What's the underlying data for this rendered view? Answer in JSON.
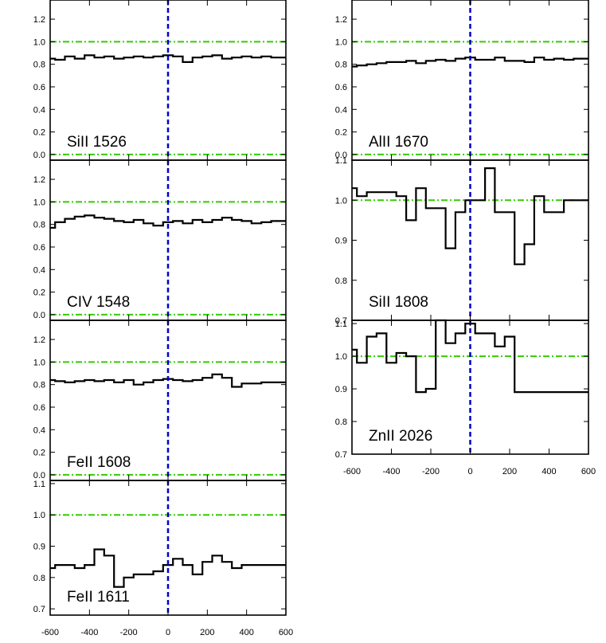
{
  "chart_data": [
    {
      "type": "line",
      "step": true,
      "label": "SiII 1526",
      "ylim": [
        -0.05,
        1.37
      ],
      "yticks": [
        "0.0",
        "0.2",
        "0.4",
        "0.6",
        "0.8",
        "1.0",
        "1.2"
      ],
      "xlim": [
        -600,
        600
      ],
      "continuum": 1.0,
      "zero_level": 0.0,
      "series": [
        {
          "x": [
            -600,
            -550,
            -500,
            -450,
            -400,
            -350,
            -300,
            -250,
            -200,
            -150,
            -100,
            -50,
            0,
            50,
            100,
            150,
            200,
            250,
            300,
            350,
            400,
            450,
            500,
            550,
            600
          ],
          "values": [
            0.85,
            0.84,
            0.87,
            0.85,
            0.88,
            0.86,
            0.87,
            0.85,
            0.86,
            0.87,
            0.86,
            0.87,
            0.88,
            0.87,
            0.82,
            0.86,
            0.87,
            0.88,
            0.85,
            0.86,
            0.87,
            0.86,
            0.87,
            0.86,
            0.86
          ]
        }
      ]
    },
    {
      "type": "line",
      "step": true,
      "label": "CIV 1548",
      "ylim": [
        -0.05,
        1.37
      ],
      "yticks": [
        "0.0",
        "0.2",
        "0.4",
        "0.6",
        "0.8",
        "1.0",
        "1.2"
      ],
      "xlim": [
        -600,
        600
      ],
      "continuum": 1.0,
      "zero_level": 0.0,
      "series": [
        {
          "x": [
            -600,
            -550,
            -500,
            -450,
            -400,
            -350,
            -300,
            -250,
            -200,
            -150,
            -100,
            -50,
            0,
            50,
            100,
            150,
            200,
            250,
            300,
            350,
            400,
            450,
            500,
            550,
            600
          ],
          "values": [
            0.77,
            0.82,
            0.85,
            0.87,
            0.88,
            0.86,
            0.85,
            0.83,
            0.82,
            0.84,
            0.81,
            0.79,
            0.82,
            0.83,
            0.81,
            0.84,
            0.82,
            0.84,
            0.86,
            0.84,
            0.83,
            0.81,
            0.82,
            0.83,
            0.83
          ]
        }
      ]
    },
    {
      "type": "line",
      "step": true,
      "label": "FeII 1608",
      "ylim": [
        -0.05,
        1.37
      ],
      "yticks": [
        "0.0",
        "0.2",
        "0.4",
        "0.6",
        "0.8",
        "1.0",
        "1.2"
      ],
      "xlim": [
        -600,
        600
      ],
      "continuum": 1.0,
      "zero_level": 0.0,
      "series": [
        {
          "x": [
            -600,
            -550,
            -500,
            -450,
            -400,
            -350,
            -300,
            -250,
            -200,
            -150,
            -100,
            -50,
            0,
            50,
            100,
            150,
            200,
            250,
            300,
            350,
            400,
            450,
            500,
            550,
            600
          ],
          "values": [
            0.84,
            0.83,
            0.82,
            0.83,
            0.84,
            0.83,
            0.84,
            0.82,
            0.84,
            0.8,
            0.82,
            0.84,
            0.85,
            0.84,
            0.83,
            0.84,
            0.86,
            0.89,
            0.86,
            0.78,
            0.81,
            0.81,
            0.82,
            0.82,
            0.82
          ]
        }
      ]
    },
    {
      "type": "line",
      "step": true,
      "label": "FeII 1611",
      "ylim": [
        0.68,
        1.11
      ],
      "yticks": [
        "0.7",
        "0.8",
        "0.9",
        "1.0",
        "1.1"
      ],
      "xlim": [
        -600,
        600
      ],
      "xticks": [
        "-600",
        "-400",
        "-200",
        "0",
        "200",
        "400",
        "600"
      ],
      "continuum": 1.0,
      "series": [
        {
          "x": [
            -600,
            -550,
            -500,
            -450,
            -400,
            -350,
            -300,
            -250,
            -200,
            -150,
            -100,
            -50,
            0,
            50,
            100,
            150,
            200,
            250,
            300,
            350,
            400,
            450,
            500,
            550,
            600
          ],
          "values": [
            0.83,
            0.84,
            0.84,
            0.83,
            0.84,
            0.89,
            0.87,
            0.77,
            0.8,
            0.81,
            0.81,
            0.82,
            0.84,
            0.86,
            0.84,
            0.81,
            0.85,
            0.87,
            0.85,
            0.83,
            0.84,
            0.84,
            0.84,
            0.84,
            0.84
          ]
        }
      ]
    },
    {
      "type": "line",
      "step": true,
      "label": "AlII 1670",
      "ylim": [
        -0.05,
        1.37
      ],
      "yticks": [
        "0.0",
        "0.2",
        "0.4",
        "0.6",
        "0.8",
        "1.0",
        "1.2"
      ],
      "xlim": [
        -600,
        600
      ],
      "continuum": 1.0,
      "zero_level": 0.0,
      "series": [
        {
          "x": [
            -600,
            -550,
            -500,
            -450,
            -400,
            -350,
            -300,
            -250,
            -200,
            -150,
            -100,
            -50,
            0,
            50,
            100,
            150,
            200,
            250,
            300,
            350,
            400,
            450,
            500,
            550,
            600
          ],
          "values": [
            0.78,
            0.79,
            0.8,
            0.81,
            0.82,
            0.82,
            0.83,
            0.81,
            0.83,
            0.84,
            0.83,
            0.85,
            0.86,
            0.84,
            0.84,
            0.86,
            0.83,
            0.83,
            0.82,
            0.86,
            0.84,
            0.85,
            0.84,
            0.85,
            0.85
          ]
        }
      ]
    },
    {
      "type": "line",
      "step": true,
      "label": "SiII 1808",
      "ylim": [
        0.7,
        1.1
      ],
      "yticks": [
        "0.7",
        "0.8",
        "0.9",
        "1.0",
        "1.1"
      ],
      "xlim": [
        -600,
        600
      ],
      "continuum": 1.0,
      "series": [
        {
          "x": [
            -600,
            -550,
            -500,
            -450,
            -400,
            -350,
            -300,
            -250,
            -200,
            -150,
            -100,
            -50,
            0,
            50,
            100,
            150,
            200,
            250,
            300,
            350,
            400,
            450,
            500,
            550,
            600
          ],
          "values": [
            1.03,
            1.01,
            1.02,
            1.02,
            1.02,
            1.01,
            0.95,
            1.03,
            0.98,
            0.98,
            0.88,
            0.97,
            1.0,
            1.0,
            1.08,
            0.97,
            0.97,
            0.84,
            0.89,
            1.01,
            0.97,
            0.97,
            1.0,
            1.0,
            1.0
          ]
        }
      ]
    },
    {
      "type": "line",
      "step": true,
      "label": "ZnII 2026",
      "ylim": [
        0.7,
        1.11
      ],
      "yticks": [
        "0.7",
        "0.8",
        "0.9",
        "1.0",
        "1.1"
      ],
      "xlim": [
        -600,
        600
      ],
      "xticks": [
        "-600",
        "-400",
        "-200",
        "0",
        "200",
        "400",
        "600"
      ],
      "continuum": 1.0,
      "series": [
        {
          "x": [
            -600,
            -550,
            -500,
            -450,
            -400,
            -350,
            -300,
            -250,
            -200,
            -150,
            -100,
            -50,
            0,
            50,
            100,
            150,
            200,
            250,
            300,
            350,
            400,
            450,
            500,
            550,
            600
          ],
          "values": [
            1.02,
            0.98,
            1.06,
            1.07,
            0.98,
            1.01,
            1.0,
            0.89,
            0.9,
            1.11,
            1.04,
            1.07,
            1.1,
            1.07,
            1.07,
            1.03,
            1.06,
            0.89,
            0.89,
            0.89,
            0.89,
            0.89,
            0.89,
            0.89,
            0.89
          ]
        }
      ]
    }
  ],
  "colors": {
    "data": "#000000",
    "continuum": "#33cc00",
    "velocity_zero": "#0000cc",
    "frame": "#000000"
  }
}
